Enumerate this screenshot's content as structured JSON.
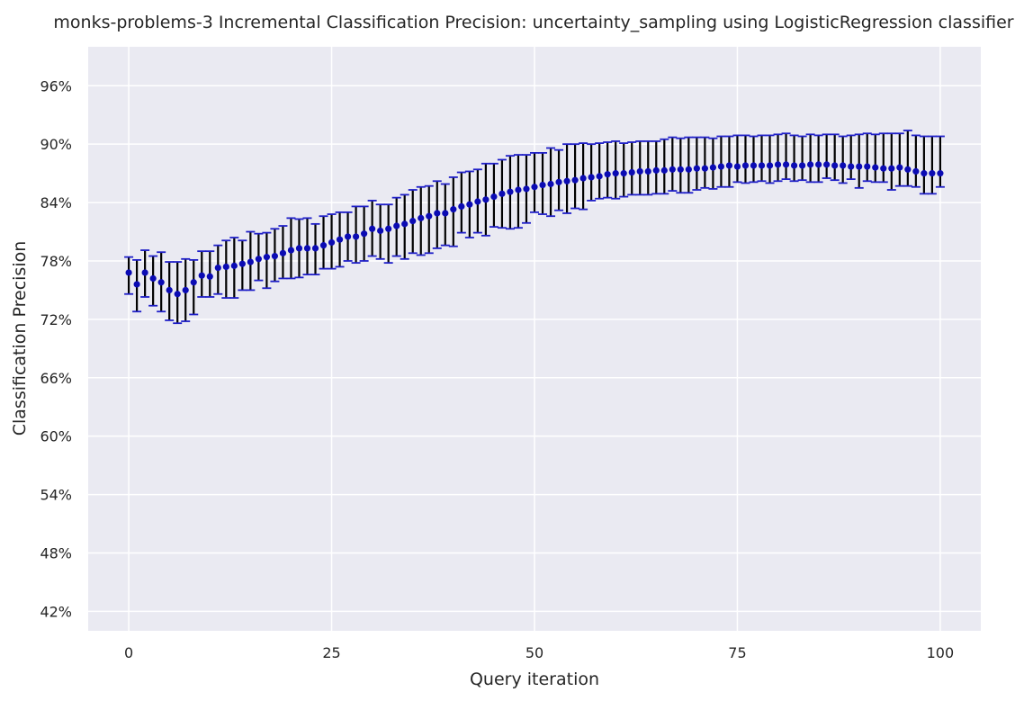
{
  "chart_data": {
    "type": "scatter",
    "title": "monks-problems-3 Incremental Classification Precision: uncertainty_sampling using LogisticRegression classifier",
    "xlabel": "Query iteration",
    "ylabel": "Classification Precision",
    "xlim": [
      -5,
      105
    ],
    "ylim": [
      40,
      100
    ],
    "x_ticks": [
      0,
      25,
      50,
      75,
      100
    ],
    "y_ticks": [
      42,
      48,
      54,
      60,
      66,
      72,
      78,
      84,
      90,
      96
    ],
    "y_tick_format": "percent",
    "grid": true,
    "background": "#eaeaf2",
    "marker_color": "#0b0bb4",
    "errorbar_color": "#000000",
    "cap_color": "#1f1fc8",
    "series": [
      {
        "x": [
          0,
          1,
          2,
          3,
          4,
          5,
          6,
          7,
          8,
          9,
          10,
          11,
          12,
          13,
          14,
          15,
          16,
          17,
          18,
          19,
          20,
          21,
          22,
          23,
          24,
          25,
          26,
          27,
          28,
          29,
          30,
          31,
          32,
          33,
          34,
          35,
          36,
          37,
          38,
          39,
          40,
          41,
          42,
          43,
          44,
          45,
          46,
          47,
          48,
          49,
          50,
          51,
          52,
          53,
          54,
          55,
          56,
          57,
          58,
          59,
          60,
          61,
          62,
          63,
          64,
          65,
          66,
          67,
          68,
          69,
          70,
          71,
          72,
          73,
          74,
          75,
          76,
          77,
          78,
          79,
          80,
          81,
          82,
          83,
          84,
          85,
          86,
          87,
          88,
          89,
          90,
          91,
          92,
          93,
          94,
          95,
          96,
          97,
          98,
          99,
          100
        ],
        "y": [
          76.8,
          75.6,
          76.8,
          76.2,
          75.8,
          75.0,
          74.6,
          75.0,
          75.8,
          76.5,
          76.4,
          77.3,
          77.4,
          77.5,
          77.7,
          77.9,
          78.2,
          78.4,
          78.5,
          78.8,
          79.1,
          79.3,
          79.3,
          79.3,
          79.6,
          79.9,
          80.2,
          80.5,
          80.5,
          80.8,
          81.3,
          81.1,
          81.3,
          81.6,
          81.8,
          82.1,
          82.4,
          82.6,
          82.9,
          82.9,
          83.3,
          83.6,
          83.8,
          84.1,
          84.3,
          84.6,
          84.9,
          85.1,
          85.3,
          85.4,
          85.6,
          85.8,
          85.9,
          86.1,
          86.2,
          86.3,
          86.5,
          86.6,
          86.7,
          86.9,
          87.0,
          87.0,
          87.1,
          87.2,
          87.2,
          87.3,
          87.3,
          87.4,
          87.4,
          87.4,
          87.5,
          87.5,
          87.6,
          87.7,
          87.8,
          87.7,
          87.8,
          87.8,
          87.8,
          87.8,
          87.9,
          87.9,
          87.8,
          87.8,
          87.9,
          87.9,
          87.9,
          87.8,
          87.8,
          87.7,
          87.7,
          87.7,
          87.6,
          87.5,
          87.5,
          87.6,
          87.4,
          87.2,
          87.0,
          87.0,
          87.0
        ],
        "err_low": [
          74.6,
          72.8,
          74.3,
          73.4,
          72.8,
          71.9,
          71.6,
          71.8,
          72.5,
          74.3,
          74.3,
          74.6,
          74.2,
          74.2,
          75.0,
          75.0,
          76.0,
          75.2,
          75.9,
          76.2,
          76.2,
          76.3,
          76.6,
          76.6,
          77.2,
          77.2,
          77.4,
          78.0,
          77.8,
          78.0,
          78.5,
          78.2,
          77.8,
          78.5,
          78.2,
          78.8,
          78.6,
          78.8,
          79.3,
          79.6,
          79.5,
          80.9,
          80.4,
          80.9,
          80.6,
          81.5,
          81.4,
          81.3,
          81.4,
          81.9,
          83.0,
          82.8,
          82.6,
          83.2,
          82.9,
          83.4,
          83.3,
          84.2,
          84.4,
          84.5,
          84.4,
          84.6,
          84.8,
          84.8,
          84.8,
          84.9,
          84.9,
          85.2,
          85.0,
          85.0,
          85.3,
          85.5,
          85.4,
          85.6,
          85.6,
          86.1,
          86.0,
          86.1,
          86.2,
          86.0,
          86.2,
          86.4,
          86.2,
          86.3,
          86.1,
          86.1,
          86.5,
          86.3,
          86.0,
          86.4,
          85.5,
          86.2,
          86.1,
          86.1,
          85.3,
          85.7,
          85.7,
          85.6,
          84.9,
          84.9,
          85.6
        ],
        "err_high": [
          78.4,
          78.1,
          79.1,
          78.5,
          78.9,
          77.9,
          77.9,
          78.2,
          78.1,
          79.0,
          79.0,
          79.6,
          80.1,
          80.4,
          80.1,
          81.0,
          80.8,
          80.9,
          81.3,
          81.6,
          82.4,
          82.3,
          82.4,
          81.8,
          82.6,
          82.8,
          83.0,
          83.0,
          83.6,
          83.6,
          84.2,
          83.8,
          83.8,
          84.5,
          84.8,
          85.3,
          85.6,
          85.7,
          86.2,
          85.9,
          86.6,
          87.1,
          87.2,
          87.4,
          88.0,
          88.0,
          88.4,
          88.8,
          88.9,
          88.9,
          89.1,
          89.1,
          89.6,
          89.4,
          90.0,
          90.0,
          90.1,
          90.0,
          90.1,
          90.2,
          90.3,
          90.1,
          90.2,
          90.3,
          90.3,
          90.3,
          90.5,
          90.7,
          90.6,
          90.7,
          90.7,
          90.7,
          90.6,
          90.8,
          90.8,
          90.9,
          90.9,
          90.8,
          90.9,
          90.9,
          91.0,
          91.1,
          90.9,
          90.8,
          91.0,
          90.9,
          91.0,
          91.0,
          90.8,
          90.9,
          91.0,
          91.1,
          91.0,
          91.1,
          91.1,
          91.1,
          91.4,
          90.9,
          90.8,
          90.8,
          90.8
        ]
      }
    ]
  }
}
